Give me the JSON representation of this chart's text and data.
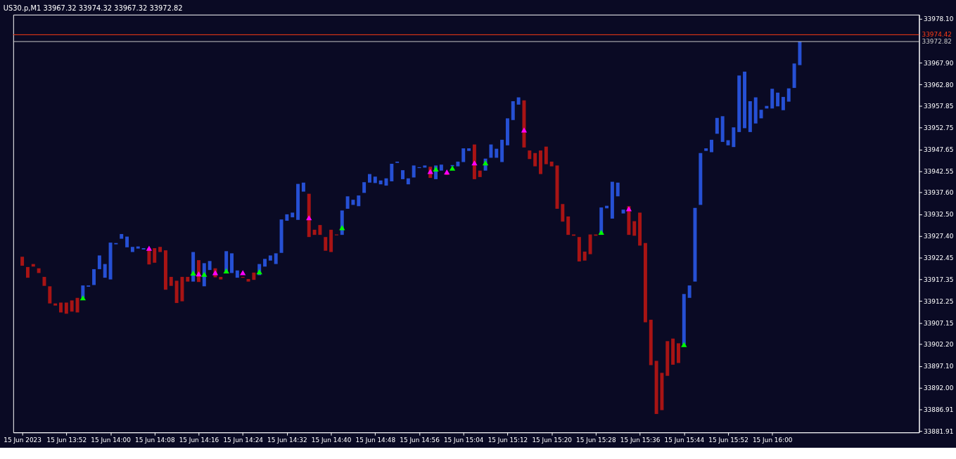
{
  "chart_data": {
    "type": "bar",
    "title": "US30.p,M1  33967.32 33974.32 33967.32 33972.82",
    "xlim": [
      "2023-06-15T13:43",
      "2023-06-15T16:26"
    ],
    "xticks": [
      {
        "value": "2023-06-15T13:44",
        "label": "15 Jun 2023"
      },
      {
        "value": "2023-06-15T13:52",
        "label": "15 Jun 13:52"
      },
      {
        "value": "2023-06-15T14:00",
        "label": "15 Jun 14:00"
      },
      {
        "value": "2023-06-15T14:08",
        "label": "15 Jun 14:08"
      },
      {
        "value": "2023-06-15T14:16",
        "label": "15 Jun 14:16"
      },
      {
        "value": "2023-06-15T14:24",
        "label": "15 Jun 14:24"
      },
      {
        "value": "2023-06-15T14:32",
        "label": "15 Jun 14:32"
      },
      {
        "value": "2023-06-15T14:40",
        "label": "15 Jun 14:40"
      },
      {
        "value": "2023-06-15T14:48",
        "label": "15 Jun 14:48"
      },
      {
        "value": "2023-06-15T14:56",
        "label": "15 Jun 14:56"
      },
      {
        "value": "2023-06-15T15:04",
        "label": "15 Jun 15:04"
      },
      {
        "value": "2023-06-15T15:12",
        "label": "15 Jun 15:12"
      },
      {
        "value": "2023-06-15T15:20",
        "label": "15 Jun 15:20"
      },
      {
        "value": "2023-06-15T15:28",
        "label": "15 Jun 15:28"
      },
      {
        "value": "2023-06-15T15:36",
        "label": "15 Jun 15:36"
      },
      {
        "value": "2023-06-15T15:44",
        "label": "15 Jun 15:44"
      },
      {
        "value": "2023-06-15T15:52",
        "label": "15 Jun 15:52"
      },
      {
        "value": "2023-06-15T16:00",
        "label": "15 Jun 16:00"
      }
    ],
    "ylim": [
      33881.6,
      33979.1
    ],
    "yticks": [
      {
        "value": 33978.1,
        "label": "33978.10"
      },
      {
        "value": 33967.9,
        "label": "33967.90"
      },
      {
        "value": 33962.8,
        "label": "33962.80"
      },
      {
        "value": 33957.85,
        "label": "33957.85"
      },
      {
        "value": 33952.75,
        "label": "33952.75"
      },
      {
        "value": 33947.65,
        "label": "33947.65"
      },
      {
        "value": 33942.55,
        "label": "33942.55"
      },
      {
        "value": 33937.6,
        "label": "33937.60"
      },
      {
        "value": 33932.5,
        "label": "33932.50"
      },
      {
        "value": 33927.4,
        "label": "33927.40"
      },
      {
        "value": 33922.45,
        "label": "33922.45"
      },
      {
        "value": 33917.35,
        "label": "33917.35"
      },
      {
        "value": 33912.25,
        "label": "33912.25"
      },
      {
        "value": 33907.15,
        "label": "33907.15"
      },
      {
        "value": 33902.2,
        "label": "33902.20"
      },
      {
        "value": 33897.1,
        "label": "33897.10"
      },
      {
        "value": 33892.0,
        "label": "33892.00"
      },
      {
        "value": 33886.91,
        "label": "33886.91"
      },
      {
        "value": 33881.91,
        "label": "33881.91"
      }
    ],
    "grid": false,
    "ref_lines": [
      {
        "axis": "y",
        "value": 33974.42,
        "label": "33974.42",
        "color": "#ff3c14"
      },
      {
        "axis": "y",
        "value": 33972.82,
        "label": "33972.82",
        "color": "#c8c8c8"
      }
    ],
    "series": [
      {
        "x": [
          "2023-06-15T13:44",
          "2023-06-15T13:45",
          "2023-06-15T13:46",
          "2023-06-15T13:47",
          "2023-06-15T13:48",
          "2023-06-15T13:49",
          "2023-06-15T13:50",
          "2023-06-15T13:51",
          "2023-06-15T13:52",
          "2023-06-15T13:53",
          "2023-06-15T13:54",
          "2023-06-15T13:55",
          "2023-06-15T13:56",
          "2023-06-15T13:57",
          "2023-06-15T13:58",
          "2023-06-15T13:59",
          "2023-06-15T14:00",
          "2023-06-15T14:01",
          "2023-06-15T14:02",
          "2023-06-15T14:03",
          "2023-06-15T14:04",
          "2023-06-15T14:05",
          "2023-06-15T14:06",
          "2023-06-15T14:07",
          "2023-06-15T14:08",
          "2023-06-15T14:09",
          "2023-06-15T14:10",
          "2023-06-15T14:11",
          "2023-06-15T14:12",
          "2023-06-15T14:13",
          "2023-06-15T14:14",
          "2023-06-15T14:15",
          "2023-06-15T14:16",
          "2023-06-15T14:17",
          "2023-06-15T14:18",
          "2023-06-15T14:19",
          "2023-06-15T14:20",
          "2023-06-15T14:21",
          "2023-06-15T14:22",
          "2023-06-15T14:23",
          "2023-06-15T14:24",
          "2023-06-15T14:25",
          "2023-06-15T14:26",
          "2023-06-15T14:27",
          "2023-06-15T14:28",
          "2023-06-15T14:29",
          "2023-06-15T14:30",
          "2023-06-15T14:31",
          "2023-06-15T14:32",
          "2023-06-15T14:33",
          "2023-06-15T14:34",
          "2023-06-15T14:35",
          "2023-06-15T14:36",
          "2023-06-15T14:37",
          "2023-06-15T14:38",
          "2023-06-15T14:39",
          "2023-06-15T14:40",
          "2023-06-15T14:41",
          "2023-06-15T14:42",
          "2023-06-15T14:43",
          "2023-06-15T14:44",
          "2023-06-15T14:45",
          "2023-06-15T14:46",
          "2023-06-15T14:47",
          "2023-06-15T14:48",
          "2023-06-15T14:49",
          "2023-06-15T14:50",
          "2023-06-15T14:51",
          "2023-06-15T14:52",
          "2023-06-15T14:53",
          "2023-06-15T14:54",
          "2023-06-15T14:55",
          "2023-06-15T14:56",
          "2023-06-15T14:57",
          "2023-06-15T14:58",
          "2023-06-15T14:59",
          "2023-06-15T15:00",
          "2023-06-15T15:01",
          "2023-06-15T15:02",
          "2023-06-15T15:03",
          "2023-06-15T15:04",
          "2023-06-15T15:05",
          "2023-06-15T15:06",
          "2023-06-15T15:07",
          "2023-06-15T15:08",
          "2023-06-15T15:09",
          "2023-06-15T15:10",
          "2023-06-15T15:11",
          "2023-06-15T15:12",
          "2023-06-15T15:13",
          "2023-06-15T15:14",
          "2023-06-15T15:15",
          "2023-06-15T15:16",
          "2023-06-15T15:17",
          "2023-06-15T15:18",
          "2023-06-15T15:19",
          "2023-06-15T15:20",
          "2023-06-15T15:21",
          "2023-06-15T15:22",
          "2023-06-15T15:23",
          "2023-06-15T15:24",
          "2023-06-15T15:25",
          "2023-06-15T15:26",
          "2023-06-15T15:27",
          "2023-06-15T15:28",
          "2023-06-15T15:29",
          "2023-06-15T15:30",
          "2023-06-15T15:31",
          "2023-06-15T15:32",
          "2023-06-15T15:33",
          "2023-06-15T15:34",
          "2023-06-15T15:35",
          "2023-06-15T15:36",
          "2023-06-15T15:37",
          "2023-06-15T15:38",
          "2023-06-15T15:39",
          "2023-06-15T15:40",
          "2023-06-15T15:41",
          "2023-06-15T15:42",
          "2023-06-15T15:43",
          "2023-06-15T15:44",
          "2023-06-15T15:45",
          "2023-06-15T15:46",
          "2023-06-15T15:47",
          "2023-06-15T15:48",
          "2023-06-15T15:49",
          "2023-06-15T15:50",
          "2023-06-15T15:51",
          "2023-06-15T15:52",
          "2023-06-15T15:53",
          "2023-06-15T15:54",
          "2023-06-15T15:55",
          "2023-06-15T15:56",
          "2023-06-15T15:57",
          "2023-06-15T15:58",
          "2023-06-15T15:59",
          "2023-06-15T16:00",
          "2023-06-15T16:01",
          "2023-06-15T16:02",
          "2023-06-15T16:03",
          "2023-06-15T16:04",
          "2023-06-15T16:05"
        ],
        "base": [
          33922.6,
          33920.2,
          33920.9,
          33919.9,
          33917.9,
          33915.7,
          33911.7,
          33911.9,
          33911.9,
          33912.4,
          33913.0,
          33913.0,
          33915.6,
          33916.0,
          33919.7,
          33917.7,
          33917.3,
          33925.5,
          33926.8,
          33924.8,
          33923.7,
          33924.5,
          33924.3,
          33924.6,
          33924.6,
          33924.9,
          33924.1,
          33917.9,
          33917.0,
          33917.9,
          33917.9,
          33916.8,
          33921.8,
          33915.7,
          33919.5,
          33919.9,
          33917.9,
          33918.8,
          33918.8,
          33917.7,
          33917.9,
          33917.4,
          33918.9,
          33918.3,
          33920.3,
          33921.7,
          33920.9,
          33923.5,
          33931.0,
          33931.8,
          33931.2,
          33937.8,
          33937.3,
          33928.9,
          33930.0,
          33927.2,
          33928.9,
          33927.8,
          33927.7,
          33933.8,
          33934.7,
          33934.4,
          33937.5,
          33939.9,
          33939.8,
          33939.5,
          33939.2,
          33940.2,
          33944.5,
          33940.7,
          33939.5,
          33941.1,
          33943.3,
          33943.4,
          33943.6,
          33940.7,
          33942.7,
          33941.9,
          33943.7,
          33943.7,
          33944.7,
          33947.3,
          33948.8,
          33942.7,
          33942.7,
          33945.7,
          33945.7,
          33944.7,
          33948.6,
          33954.5,
          33958.1,
          33959.1,
          33947.4,
          33946.8,
          33947.4,
          33948.3,
          33944.8,
          33943.9,
          33934.9,
          33932.0,
          33927.8,
          33927.2,
          33923.8,
          33927.8,
          33927.8,
          33927.7,
          33933.9,
          33931.5,
          33936.7,
          33932.7,
          33934.4,
          33930.9,
          33932.9,
          33925.8,
          33907.9,
          33898.3,
          33895.5,
          33902.9,
          33903.5,
          33902.4,
          33902.1,
          33913.0,
          33916.8,
          33934.7,
          33947.3,
          33947.0,
          33951.3,
          33949.4,
          33948.6,
          33948.2,
          33951.7,
          33952.6,
          33951.7,
          33953.7,
          33954.9,
          33957.2,
          33957.2,
          33957.7,
          33956.8,
          33958.8,
          33962.0,
          33967.32
        ],
        "values": [
          -2.1,
          -2.5,
          -0.6,
          -1.1,
          -2.1,
          -4.0,
          -0.5,
          -2.3,
          -2.6,
          -2.6,
          -3.4,
          2.9,
          0.3,
          3.7,
          3.2,
          3.2,
          8.6,
          0.3,
          1.1,
          2.5,
          1.2,
          0.5,
          0.3,
          -3.8,
          -3.4,
          -1.2,
          -9.2,
          -2.1,
          -5.2,
          -5.7,
          -1.1,
          6.9,
          -5.1,
          5.4,
          2.1,
          -2.1,
          -0.6,
          5.1,
          4.6,
          1.7,
          -0.2,
          -0.6,
          -1.7,
          2.6,
          1.8,
          1.2,
          2.5,
          7.8,
          1.5,
          1.1,
          8.4,
          2.1,
          -10.1,
          -1.2,
          -2.3,
          -3.2,
          -5.2,
          -0.2,
          5.7,
          2.9,
          1.2,
          2.5,
          2.5,
          2.0,
          1.5,
          0.9,
          1.7,
          4.1,
          0.3,
          2.1,
          1.4,
          2.8,
          0.2,
          0.5,
          -2.6,
          3.2,
          1.4,
          -0.2,
          0.3,
          1.1,
          3.2,
          0.6,
          -8.1,
          -1.5,
          2.8,
          3.1,
          2.1,
          5.2,
          6.3,
          4.4,
          1.7,
          -11.0,
          -2.0,
          -3.1,
          -5.5,
          -4.1,
          -1.1,
          -10.1,
          -4.1,
          -4.3,
          -0.3,
          -5.7,
          -2.1,
          -4.6,
          -0.3,
          6.4,
          0.6,
          8.6,
          3.2,
          0.9,
          -6.7,
          -3.4,
          -7.7,
          -18.5,
          -10.6,
          -12.4,
          -8.7,
          -8.1,
          -6.1,
          -4.6,
          11.8,
          2.9,
          17.2,
          12.1,
          0.6,
          2.9,
          3.7,
          6.0,
          1.2,
          4.6,
          13.2,
          13.2,
          7.2,
          6.1,
          2.0,
          0.6,
          4.6,
          3.2,
          3.1,
          3.1,
          5.7,
          5.5
        ],
        "colors": [
          "#a81414",
          "#a81414",
          "#a81414",
          "#a81414",
          "#a81414",
          "#a81414",
          "#a81414",
          "#a81414",
          "#a81414",
          "#a81414",
          "#a81414",
          "#2650d4",
          "#2650d4",
          "#2650d4",
          "#2650d4",
          "#2650d4",
          "#2650d4",
          "#2650d4",
          "#2650d4",
          "#2650d4",
          "#2650d4",
          "#2650d4",
          "#2650d4",
          "#a81414",
          "#a81414",
          "#a81414",
          "#a81414",
          "#a81414",
          "#a81414",
          "#a81414",
          "#a81414",
          "#2650d4",
          "#a81414",
          "#2650d4",
          "#2650d4",
          "#a81414",
          "#a81414",
          "#2650d4",
          "#2650d4",
          "#2650d4",
          "#a81414",
          "#a81414",
          "#a81414",
          "#2650d4",
          "#2650d4",
          "#2650d4",
          "#2650d4",
          "#2650d4",
          "#2650d4",
          "#2650d4",
          "#2650d4",
          "#2650d4",
          "#a81414",
          "#a81414",
          "#a81414",
          "#a81414",
          "#a81414",
          "#a81414",
          "#2650d4",
          "#2650d4",
          "#2650d4",
          "#2650d4",
          "#2650d4",
          "#2650d4",
          "#2650d4",
          "#2650d4",
          "#2650d4",
          "#2650d4",
          "#2650d4",
          "#2650d4",
          "#2650d4",
          "#2650d4",
          "#2650d4",
          "#2650d4",
          "#a81414",
          "#2650d4",
          "#2650d4",
          "#a81414",
          "#2650d4",
          "#2650d4",
          "#2650d4",
          "#2650d4",
          "#a81414",
          "#a81414",
          "#2650d4",
          "#2650d4",
          "#2650d4",
          "#2650d4",
          "#2650d4",
          "#2650d4",
          "#2650d4",
          "#a81414",
          "#a81414",
          "#a81414",
          "#a81414",
          "#a81414",
          "#a81414",
          "#a81414",
          "#a81414",
          "#a81414",
          "#a81414",
          "#a81414",
          "#a81414",
          "#a81414",
          "#a81414",
          "#2650d4",
          "#2650d4",
          "#2650d4",
          "#2650d4",
          "#2650d4",
          "#a81414",
          "#a81414",
          "#a81414",
          "#a81414",
          "#a81414",
          "#a81414",
          "#a81414",
          "#a81414",
          "#a81414",
          "#a81414",
          "#2650d4",
          "#2650d4",
          "#2650d4",
          "#2650d4",
          "#2650d4",
          "#2650d4",
          "#2650d4",
          "#2650d4",
          "#2650d4",
          "#2650d4",
          "#2650d4",
          "#2650d4",
          "#2650d4",
          "#2650d4",
          "#2650d4",
          "#2650d4",
          "#2650d4",
          "#2650d4",
          "#2650d4",
          "#2650d4",
          "#2650d4",
          "#2650d4"
        ]
      },
      {
        "type": "scatter",
        "color": "#00ff00",
        "marker": "triangle",
        "x": [
          "2023-06-15T13:55",
          "2023-06-15T14:15",
          "2023-06-15T14:17",
          "2023-06-15T14:21",
          "2023-06-15T14:27",
          "2023-06-15T14:42",
          "2023-06-15T14:59",
          "2023-06-15T15:02",
          "2023-06-15T15:08",
          "2023-06-15T15:29",
          "2023-06-15T15:44"
        ],
        "values": [
          33913.0,
          33918.8,
          33918.5,
          33919.3,
          33919.1,
          33929.4,
          33943.1,
          33943.3,
          33944.5,
          33928.3,
          33902.1
        ]
      },
      {
        "type": "scatter",
        "color": "#ff00ff",
        "marker": "triangle",
        "x": [
          "2023-06-15T14:07",
          "2023-06-15T14:16",
          "2023-06-15T14:19",
          "2023-06-15T14:24",
          "2023-06-15T14:36",
          "2023-06-15T14:58",
          "2023-06-15T15:01",
          "2023-06-15T15:06",
          "2023-06-15T15:15",
          "2023-06-15T15:34"
        ],
        "values": [
          33924.6,
          33918.6,
          33918.9,
          33918.9,
          33931.7,
          33942.5,
          33942.4,
          33944.5,
          33952.2,
          33933.8
        ]
      }
    ]
  }
}
